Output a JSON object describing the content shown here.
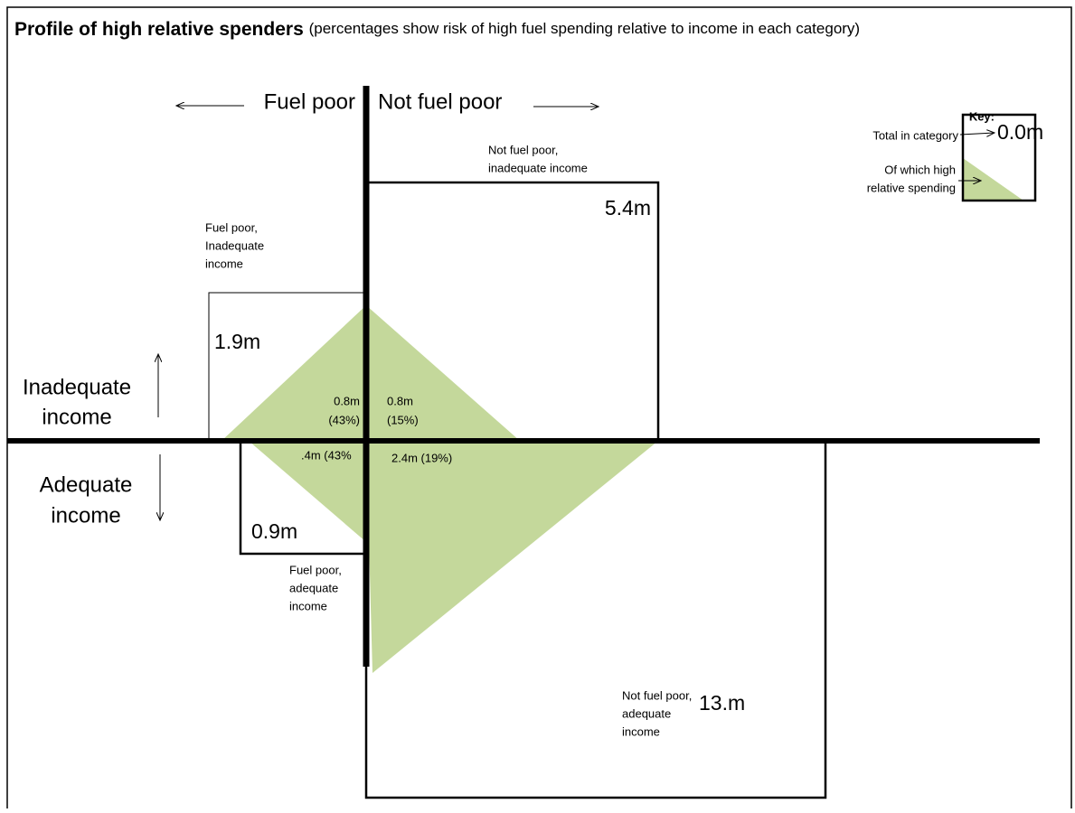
{
  "header": {
    "title": "Profile of high relative spenders",
    "subtitle": "(percentages show risk of high fuel spending relative to income in each category)"
  },
  "axes": {
    "left": "Fuel poor",
    "right": "Not fuel poor",
    "top": [
      "Inadequate",
      "income"
    ],
    "bottom": [
      "Adequate",
      "income"
    ]
  },
  "quadrants": [
    {
      "label": [
        "Not fuel poor,",
        "inadequate income"
      ],
      "total": "5.4m",
      "high": [
        "0.8m",
        "(15%)"
      ]
    },
    {
      "label": [
        "Fuel poor,",
        "Inadequate",
        "income"
      ],
      "total": "1.9m",
      "high": [
        "0.8m",
        "(43%)"
      ]
    },
    {
      "label": [
        "Fuel poor,",
        "adequate",
        "income"
      ],
      "total": "0.9m",
      "high": [
        ".4m (43%"
      ]
    },
    {
      "label": [
        "Not fuel poor,",
        "adequate",
        "income"
      ],
      "total": "13.m",
      "high": [
        "2.4m (19%)"
      ]
    }
  ],
  "key": {
    "title": "Key:",
    "total_label": "Total in category",
    "total_example": "0.0m",
    "high_label": [
      "Of which high",
      "relative spending"
    ]
  }
}
